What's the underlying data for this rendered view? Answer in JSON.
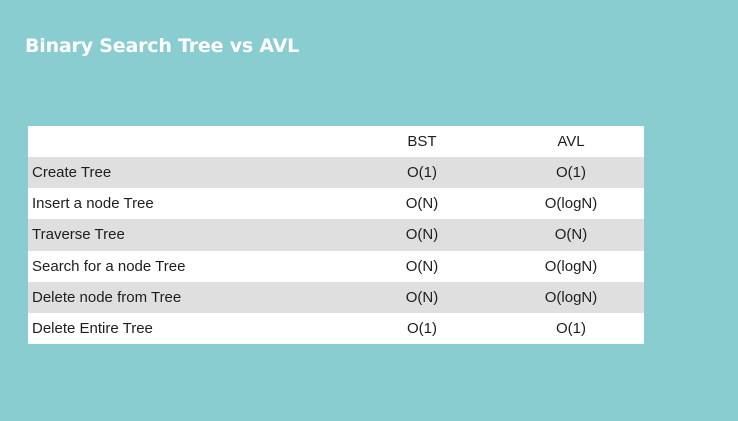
{
  "slide": {
    "title": "Binary Search Tree vs AVL"
  },
  "table": {
    "columns": [
      "",
      "BST",
      "AVL"
    ],
    "rows": [
      {
        "label": "Create Tree",
        "bst": "O(1)",
        "avl": "O(1)"
      },
      {
        "label": "Insert a node Tree",
        "bst": "O(N)",
        "avl": "O(logN)"
      },
      {
        "label": "Traverse Tree",
        "bst": "O(N)",
        "avl": "O(N)"
      },
      {
        "label": "Search for a node Tree",
        "bst": "O(N)",
        "avl": "O(logN)"
      },
      {
        "label": "Delete node from Tree",
        "bst": "O(N)",
        "avl": "O(logN)"
      },
      {
        "label": "Delete Entire Tree",
        "bst": "O(1)",
        "avl": "O(1)"
      }
    ]
  },
  "colors": {
    "background": "#89cdd0",
    "title": "#ffffff",
    "row_shaded": "#dfdfdf",
    "row_plain": "#ffffff"
  }
}
